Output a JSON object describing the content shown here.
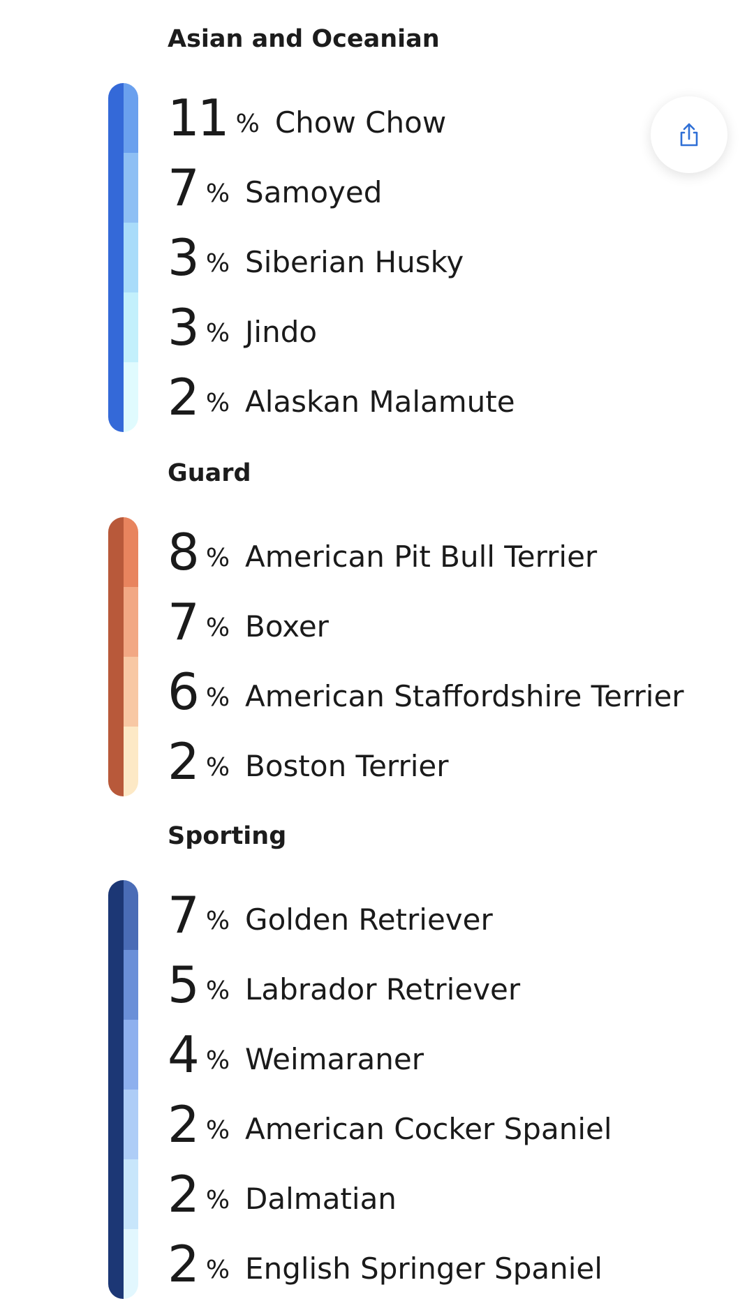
{
  "share_button": {
    "icon": "share-icon",
    "color": "#2f6fd6"
  },
  "groups": [
    {
      "title": "Asian and Oceanian",
      "dark_color": "#3469d8",
      "breeds": [
        {
          "percent": "11",
          "name": "Chow Chow",
          "color": "#6aa0ee"
        },
        {
          "percent": "7",
          "name": "Samoyed",
          "color": "#8ebff4"
        },
        {
          "percent": "3",
          "name": "Siberian Husky",
          "color": "#a9dcfa"
        },
        {
          "percent": "3",
          "name": "Jindo",
          "color": "#c3f0fc"
        },
        {
          "percent": "2",
          "name": "Alaskan Malamute",
          "color": "#e0fbfe"
        }
      ]
    },
    {
      "title": "Guard",
      "dark_color": "#b8593a",
      "breeds": [
        {
          "percent": "8",
          "name": "American Pit Bull Terrier",
          "color": "#e8845e"
        },
        {
          "percent": "7",
          "name": "Boxer",
          "color": "#f2a884"
        },
        {
          "percent": "6",
          "name": "American Staffordshire Terrier",
          "color": "#f8c8a4"
        },
        {
          "percent": "2",
          "name": "Boston Terrier",
          "color": "#fde9c6"
        }
      ]
    },
    {
      "title": "Sporting",
      "dark_color": "#1c3775",
      "breeds": [
        {
          "percent": "7",
          "name": "Golden Retriever",
          "color": "#4a6cb6"
        },
        {
          "percent": "5",
          "name": "Labrador Retriever",
          "color": "#6a8fd8"
        },
        {
          "percent": "4",
          "name": "Weimaraner",
          "color": "#8eb0ee"
        },
        {
          "percent": "2",
          "name": "American Cocker Spaniel",
          "color": "#aecdf7"
        },
        {
          "percent": "2",
          "name": "Dalmatian",
          "color": "#c8e6fb"
        },
        {
          "percent": "2",
          "name": "English Springer Spaniel",
          "color": "#e2f7fe"
        }
      ]
    }
  ],
  "percent_sign": "%"
}
